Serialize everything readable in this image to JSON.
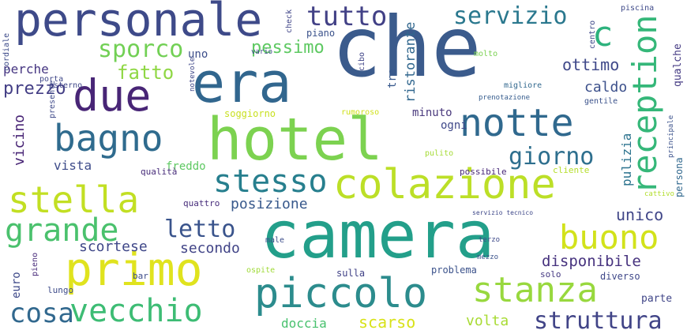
{
  "words": [
    {
      "text": "che",
      "color": "#3b5b8c"
    },
    {
      "text": "camera",
      "color": "#239f8a"
    },
    {
      "text": "hotel",
      "color": "#7cd250"
    },
    {
      "text": "era",
      "color": "#31668e"
    },
    {
      "text": "personale",
      "color": "#3e4a89"
    },
    {
      "text": "colazione",
      "color": "#bcdf27"
    },
    {
      "text": "piccolo",
      "color": "#2c8c8d"
    },
    {
      "text": "primo",
      "color": "#e0e31e"
    },
    {
      "text": "due",
      "color": "#482576"
    },
    {
      "text": "notte",
      "color": "#30698e"
    },
    {
      "text": "reception",
      "color": "#35b779"
    },
    {
      "text": "stanza",
      "color": "#98d83e"
    },
    {
      "text": "stella",
      "color": "#c2df23"
    },
    {
      "text": "bagno",
      "color": "#2f6b8e"
    },
    {
      "text": "grande",
      "color": "#4ac16d"
    },
    {
      "text": "vecchio",
      "color": "#3dbc74"
    },
    {
      "text": "buono",
      "color": "#d2e21b"
    },
    {
      "text": "stesso",
      "color": "#277f8e"
    },
    {
      "text": "struttura",
      "color": "#414487"
    },
    {
      "text": "tutto",
      "color": "#424186"
    },
    {
      "text": "servizio",
      "color": "#2a788e"
    },
    {
      "text": "sporco",
      "color": "#72d055"
    },
    {
      "text": "cosa",
      "color": "#31688e"
    },
    {
      "text": "giorno",
      "color": "#2e6f8e"
    },
    {
      "text": "letto",
      "color": "#3a548c"
    },
    {
      "text": "c",
      "color": "#2db27d"
    },
    {
      "text": "fatto",
      "color": "#8fd744"
    },
    {
      "text": "prezzo",
      "color": "#433e85"
    },
    {
      "text": "pessimo",
      "color": "#5ec962"
    },
    {
      "text": "ottimo",
      "color": "#3f4889"
    },
    {
      "text": "unico",
      "color": "#404688"
    },
    {
      "text": "disponibile",
      "color": "#46327e"
    },
    {
      "text": "scortese",
      "color": "#3f4788"
    },
    {
      "text": "secondo",
      "color": "#414487"
    },
    {
      "text": "posizione",
      "color": "#38598c"
    },
    {
      "text": "vicino",
      "color": "#482475"
    },
    {
      "text": "vista",
      "color": "#3e4c8a"
    },
    {
      "text": "perche",
      "color": "#453581"
    },
    {
      "text": "ristorante",
      "color": "#31678e"
    },
    {
      "text": "caldo",
      "color": "#3c508b"
    },
    {
      "text": "minuto",
      "color": "#4a3a7d"
    },
    {
      "text": "ogni",
      "color": "#3f4889"
    },
    {
      "text": "pulizia",
      "color": "#2c738e"
    },
    {
      "text": "doccia",
      "color": "#48c16e"
    },
    {
      "text": "scarso",
      "color": "#d8e219"
    },
    {
      "text": "volta",
      "color": "#a8db34"
    },
    {
      "text": "euro",
      "color": "#3e4989"
    },
    {
      "text": "problema",
      "color": "#3b528b"
    },
    {
      "text": "sulla",
      "color": "#414287"
    },
    {
      "text": "qualche",
      "color": "#443a83"
    },
    {
      "text": "persona",
      "color": "#31688e"
    },
    {
      "text": "diverso",
      "color": "#3f4889"
    },
    {
      "text": "tre",
      "color": "#38598c"
    },
    {
      "text": "uno",
      "color": "#3d4e8a"
    },
    {
      "text": "freddo",
      "color": "#5ec962"
    },
    {
      "text": "cliente",
      "color": "#b5de2b"
    },
    {
      "text": "possibile",
      "color": "#482878"
    },
    {
      "text": "quattro",
      "color": "#472d7b"
    },
    {
      "text": "parte",
      "color": "#404688"
    },
    {
      "text": "solo",
      "color": "#453882"
    },
    {
      "text": "lungo",
      "color": "#3e4c8a"
    },
    {
      "text": "piano",
      "color": "#3b528b"
    },
    {
      "text": "qualità",
      "color": "#472c7a"
    },
    {
      "text": "soggiorno",
      "color": "#c8e020"
    },
    {
      "text": "bar",
      "color": "#3d4d8a"
    },
    {
      "text": "ospite",
      "color": "#a0da39"
    },
    {
      "text": "piscina",
      "color": "#3e4989"
    },
    {
      "text": "cibo",
      "color": "#404588"
    },
    {
      "text": "migliore",
      "color": "#31688e"
    },
    {
      "text": "gentile",
      "color": "#3b528b"
    },
    {
      "text": "check",
      "color": "#404588"
    },
    {
      "text": "esterno",
      "color": "#3f4788"
    },
    {
      "text": "pieno",
      "color": "#472a7a"
    },
    {
      "text": "presente",
      "color": "#3e4989"
    },
    {
      "text": "cordiale",
      "color": "#3e4c8a"
    },
    {
      "text": "porta",
      "color": "#3f4788"
    },
    {
      "text": "molto",
      "color": "#7ad151"
    },
    {
      "text": "centro",
      "color": "#3e4989"
    },
    {
      "text": "prenotazione",
      "color": "#365c8d"
    },
    {
      "text": "rumoroso",
      "color": "#d0e11c"
    },
    {
      "text": "male",
      "color": "#3d4e8a"
    },
    {
      "text": "mezzo",
      "color": "#3b528b"
    },
    {
      "text": "principale",
      "color": "#3b528b"
    },
    {
      "text": "cattivo",
      "color": "#b2dd2d"
    },
    {
      "text": "pulito",
      "color": "#a5db36"
    },
    {
      "text": "terzo",
      "color": "#3e4989"
    },
    {
      "text": "notevole",
      "color": "#3f4788"
    },
    {
      "text": "vario",
      "color": "#3e4989"
    },
    {
      "text": "servizio tecnico",
      "color": "#3f4889"
    }
  ]
}
